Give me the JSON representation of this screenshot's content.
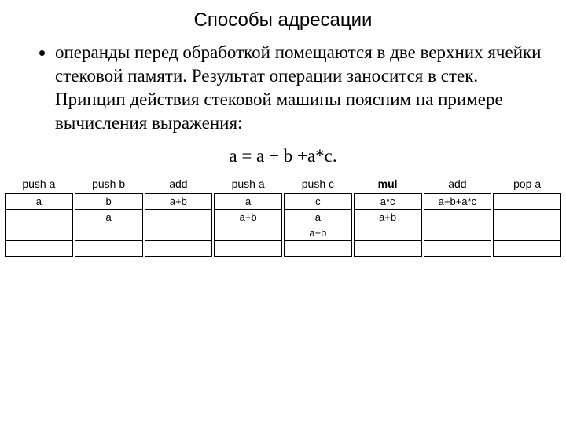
{
  "title": "Способы адресации",
  "bullet_text": "операнды перед обработкой помещаются в две верхних ячейки стековой памяти. Результат операции заносится в стек. Принцип действия стековой машины поясним на примере вычисления выражения:",
  "expression": "а = а + b +а*с.",
  "table": {
    "columns": [
      {
        "head": "push a",
        "bold": false,
        "cells": [
          "a",
          "",
          "",
          ""
        ]
      },
      {
        "head": "push b",
        "bold": false,
        "cells": [
          "b",
          "a",
          "",
          ""
        ]
      },
      {
        "head": "add",
        "bold": false,
        "cells": [
          "a+b",
          "",
          "",
          ""
        ]
      },
      {
        "head": "push a",
        "bold": false,
        "cells": [
          "a",
          "a+b",
          "",
          ""
        ]
      },
      {
        "head": "push c",
        "bold": false,
        "cells": [
          "c",
          "a",
          "a+b",
          ""
        ]
      },
      {
        "head": "mul",
        "bold": true,
        "cells": [
          "a*c",
          "a+b",
          "",
          ""
        ]
      },
      {
        "head": "add",
        "bold": false,
        "cells": [
          "a+b+a*c",
          "",
          "",
          ""
        ]
      },
      {
        "head": "pop a",
        "bold": false,
        "cells": [
          "",
          "",
          "",
          ""
        ]
      }
    ]
  }
}
